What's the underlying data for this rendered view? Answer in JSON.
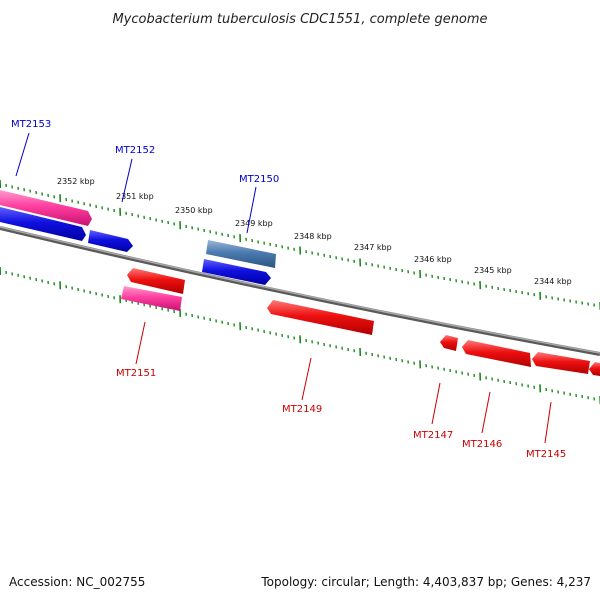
{
  "title": "Mycobacterium tuberculosis CDC1551, complete genome",
  "footer": {
    "accession": "Accession: NC_002755",
    "summary": "Topology: circular; Length: 4,403,837 bp; Genes: 4,237"
  },
  "colors": {
    "forward_label": "#0000cc",
    "reverse_label": "#cc0000",
    "tick": "#1a8a1a",
    "backbone": "#808080",
    "blue_gene": "#1010e0",
    "steelblue_gene": "#4a7ab0",
    "pink_gene": "#ff3fa0",
    "red_gene": "#ee1010"
  },
  "scale_labels": [
    "2352 kbp",
    "2351 kbp",
    "2350 kbp",
    "2349 kbp",
    "2348 kbp",
    "2347 kbp",
    "2346 kbp",
    "2345 kbp",
    "2344 kbp"
  ],
  "genes": [
    {
      "label": "MT2153",
      "strand": "forward",
      "color": "pink"
    },
    {
      "label": "MT2152",
      "strand": "forward",
      "color": "blue"
    },
    {
      "label": "MT2150",
      "strand": "forward",
      "color": "steelblue"
    },
    {
      "label": "MT2151",
      "strand": "reverse",
      "color": "pink"
    },
    {
      "label": "MT2149",
      "strand": "reverse",
      "color": "red"
    },
    {
      "label": "MT2147",
      "strand": "reverse",
      "color": "red"
    },
    {
      "label": "MT2146",
      "strand": "reverse",
      "color": "red"
    },
    {
      "label": "MT2145",
      "strand": "reverse",
      "color": "red"
    }
  ]
}
